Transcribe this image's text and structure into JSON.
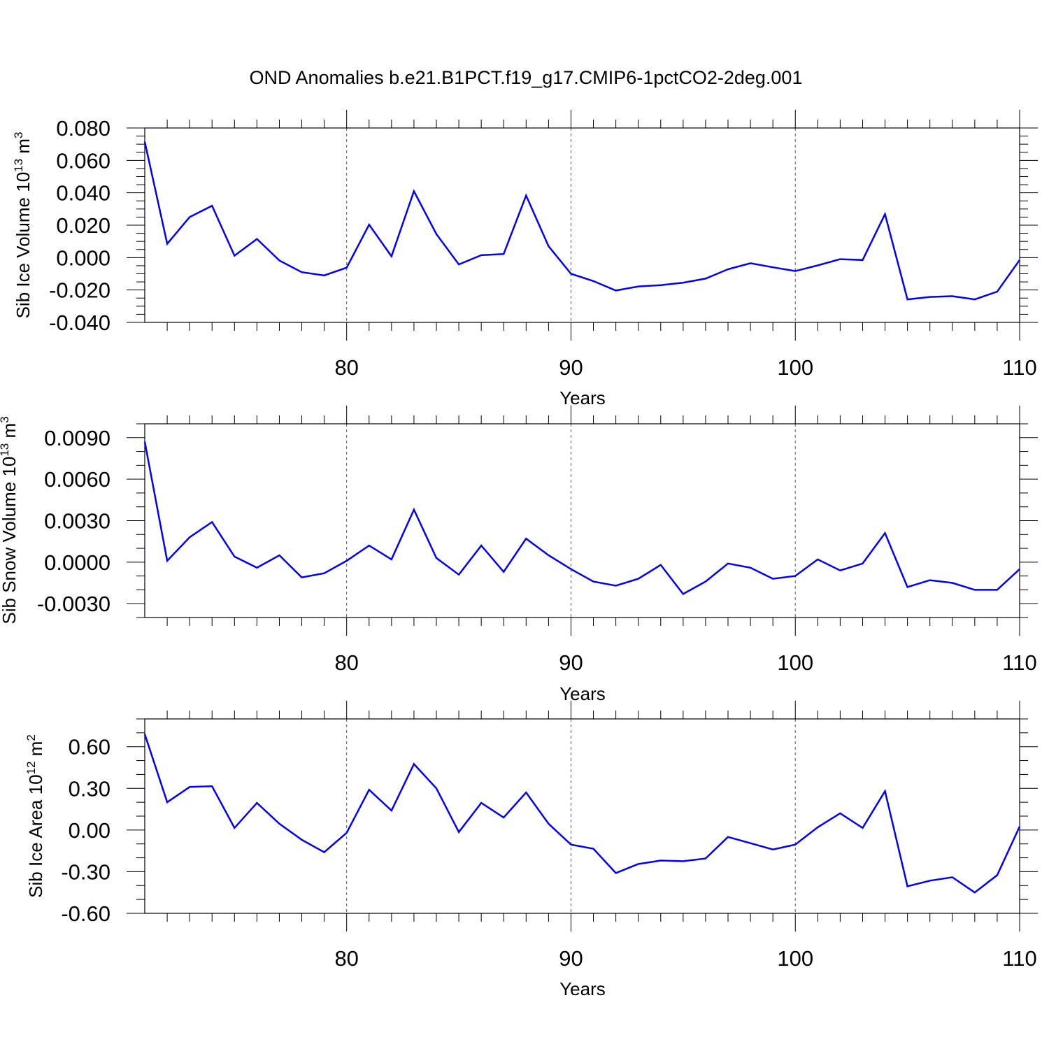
{
  "title": "OND Anomalies b.e21.B1PCT.f19_g17.CMIP6-1pctCO2-2deg.001",
  "colors": {
    "line": "#0000ff",
    "frame": "#000000",
    "grid": "#555555"
  },
  "chart_data": [
    {
      "type": "line",
      "xlabel": "Years",
      "ylabel": "Sib Ice Volume 10",
      "ylabel_exp": "13",
      "ylabel_unit": " m",
      "ylabel_unit_exp": "3",
      "xlim": [
        71,
        110
      ],
      "ylim": [
        -0.04,
        0.08
      ],
      "xticks": [
        80,
        90,
        100,
        110
      ],
      "xtick_labels": [
        "80",
        "90",
        "100",
        "110"
      ],
      "yticks": [
        0.08,
        0.06,
        0.04,
        0.02,
        0.0,
        -0.02,
        -0.04
      ],
      "ytick_labels": [
        "0.080",
        "0.060",
        "0.040",
        "0.020",
        "0.000",
        "-0.020",
        "-0.040"
      ],
      "yminor_step": 0.005,
      "grid_x": true,
      "x": [
        71,
        72,
        73,
        74,
        75,
        76,
        77,
        78,
        79,
        80,
        81,
        82,
        83,
        84,
        85,
        86,
        87,
        88,
        89,
        90,
        91,
        92,
        93,
        94,
        95,
        96,
        97,
        98,
        99,
        100,
        101,
        102,
        103,
        104,
        105,
        106,
        107,
        108,
        109,
        110
      ],
      "values": [
        0.0715,
        0.0085,
        0.025,
        0.032,
        0.0012,
        0.0115,
        -0.0018,
        -0.009,
        -0.011,
        -0.0062,
        0.0203,
        0.0008,
        0.041,
        0.0145,
        -0.0042,
        0.0015,
        0.0022,
        0.0383,
        0.007,
        -0.01,
        -0.0145,
        -0.0203,
        -0.0178,
        -0.017,
        -0.0155,
        -0.013,
        -0.0072,
        -0.0035,
        -0.006,
        -0.0083,
        -0.0048,
        -0.001,
        -0.0015,
        0.0268,
        -0.0258,
        -0.0243,
        -0.0238,
        -0.0258,
        -0.021,
        -0.0015
      ]
    },
    {
      "type": "line",
      "xlabel": "Years",
      "ylabel": "Sib Snow Volume 10",
      "ylabel_exp": "13",
      "ylabel_unit": " m",
      "ylabel_unit_exp": "3",
      "xlim": [
        71,
        110
      ],
      "ylim": [
        -0.004,
        0.01
      ],
      "xticks": [
        80,
        90,
        100,
        110
      ],
      "xtick_labels": [
        "80",
        "90",
        "100",
        "110"
      ],
      "yticks": [
        0.009,
        0.006,
        0.003,
        0.0,
        -0.003
      ],
      "ytick_labels": [
        "0.0090",
        "0.0060",
        "0.0030",
        "0.0000",
        "-0.0030"
      ],
      "yminor_step": 0.001,
      "grid_x": true,
      "x": [
        71,
        72,
        73,
        74,
        75,
        76,
        77,
        78,
        79,
        80,
        81,
        82,
        83,
        84,
        85,
        86,
        87,
        88,
        89,
        90,
        91,
        92,
        93,
        94,
        95,
        96,
        97,
        98,
        99,
        100,
        101,
        102,
        103,
        104,
        105,
        106,
        107,
        108,
        109,
        110
      ],
      "values": [
        0.0087,
        0.0001,
        0.0018,
        0.0029,
        0.0004,
        -0.0004,
        0.0005,
        -0.0011,
        -0.0008,
        0.0001,
        0.0012,
        0.0002,
        0.0038,
        0.0003,
        -0.0009,
        0.0012,
        -0.0007,
        0.0017,
        0.0005,
        -0.0005,
        -0.0014,
        -0.0017,
        -0.0012,
        -0.0002,
        -0.0023,
        -0.0014,
        -0.0001,
        -0.0004,
        -0.0012,
        -0.001,
        0.0002,
        -0.0006,
        -0.0001,
        0.0021,
        -0.0018,
        -0.0013,
        -0.0015,
        -0.002,
        -0.002,
        -0.0005
      ]
    },
    {
      "type": "line",
      "xlabel": "Years",
      "ylabel": "Sib Ice Area 10",
      "ylabel_exp": "12",
      "ylabel_unit": " m",
      "ylabel_unit_exp": "2",
      "xlim": [
        71,
        110
      ],
      "ylim": [
        -0.6,
        0.8
      ],
      "xticks": [
        80,
        90,
        100,
        110
      ],
      "xtick_labels": [
        "80",
        "90",
        "100",
        "110"
      ],
      "yticks": [
        0.6,
        0.3,
        0.0,
        -0.3,
        -0.6
      ],
      "ytick_labels": [
        "0.60",
        "0.30",
        "0.00",
        "-0.30",
        "-0.60"
      ],
      "yminor_step": 0.1,
      "grid_x": true,
      "x": [
        71,
        72,
        73,
        74,
        75,
        76,
        77,
        78,
        79,
        80,
        81,
        82,
        83,
        84,
        85,
        86,
        87,
        88,
        89,
        90,
        91,
        92,
        93,
        94,
        95,
        96,
        97,
        98,
        99,
        100,
        101,
        102,
        103,
        104,
        105,
        106,
        107,
        108,
        109,
        110
      ],
      "values": [
        0.69,
        0.2,
        0.31,
        0.315,
        0.015,
        0.195,
        0.045,
        -0.07,
        -0.16,
        -0.02,
        0.29,
        0.14,
        0.475,
        0.3,
        -0.015,
        0.195,
        0.09,
        0.27,
        0.045,
        -0.105,
        -0.135,
        -0.31,
        -0.245,
        -0.22,
        -0.225,
        -0.205,
        -0.05,
        -0.095,
        -0.14,
        -0.105,
        0.02,
        0.12,
        0.015,
        0.28,
        -0.405,
        -0.365,
        -0.34,
        -0.45,
        -0.325,
        0.025
      ]
    }
  ]
}
